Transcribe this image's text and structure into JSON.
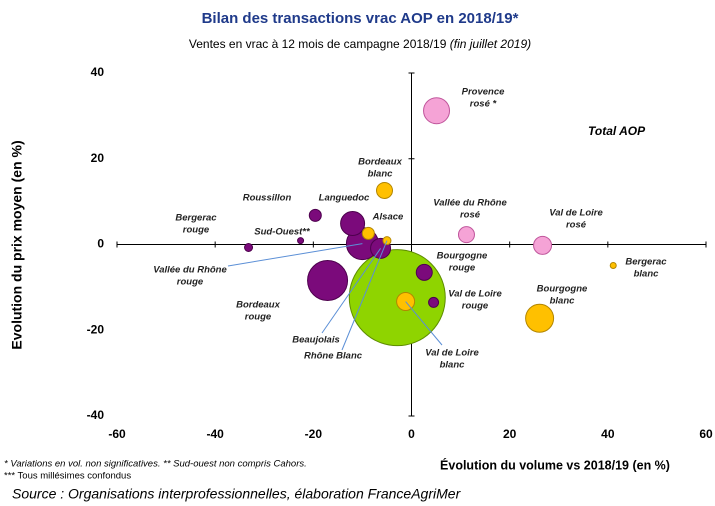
{
  "chart_data": {
    "type": "bubble",
    "title": "Bilan des transactions vrac AOP en 2018/19*",
    "subtitle": [
      "Ventes en vrac à 12 mois de campagne 2018/19 ",
      "(fin juillet 2019)"
    ],
    "annotation": "Total AOP",
    "x_label": "Évolution du volume vs 2018/19 (en %)",
    "y_label": "Evolution du prix moyen (en %)",
    "footnotes": [
      "* Variations en vol. non significatives. ** Sud-ouest non compris Cahors.",
      "*** Tous millésimes  confondus"
    ],
    "source": "Source : Organisations interprofessionnelles, élaboration FranceAgriMer",
    "xlim": [
      -60,
      60
    ],
    "xticks": [
      -60,
      -40,
      -20,
      0,
      20,
      40,
      60
    ],
    "ylim": [
      -40,
      40
    ],
    "yticks": [
      -40,
      -20,
      0,
      20,
      40
    ],
    "points": [
      {
        "label": null,
        "x": -2.9,
        "y": -12.4,
        "size": 48,
        "color": "#8fd400"
      },
      {
        "label": [
          "Bordeaux",
          "rouge"
        ],
        "x": -17.1,
        "y": -8.4,
        "size": 20,
        "color": "#7b0a7b"
      },
      {
        "label": [
          "Vallée du Rhône",
          "rouge"
        ],
        "x": -10,
        "y": 0.2,
        "size": 16,
        "color": "#7b0a7b"
      },
      {
        "label": [
          "Bourgogne",
          "blanc"
        ],
        "x": 26.1,
        "y": -17.2,
        "size": 14,
        "color": "#ffc000"
      },
      {
        "label": [
          "Provence",
          "rosé *"
        ],
        "x": 5.1,
        "y": 31.2,
        "size": 13,
        "color": "#f5a3d6"
      },
      {
        "label": [
          "Languedoc"
        ],
        "x": -12,
        "y": 4.9,
        "size": 12,
        "color": "#7b0a7b"
      },
      {
        "label": [
          "Beaujolais"
        ],
        "x": -6.3,
        "y": -0.9,
        "size": 10,
        "color": "#7b0a7b"
      },
      {
        "label": [
          "Val de Loire",
          "blanc"
        ],
        "x": -1.2,
        "y": -13.3,
        "size": 9,
        "color": "#ffc000"
      },
      {
        "label": [
          "Val de Loire",
          "rosé"
        ],
        "x": 26.7,
        "y": -0.2,
        "size": 9,
        "color": "#f5a3d6"
      },
      {
        "label": [
          "Bordeaux",
          "blanc"
        ],
        "x": -5.5,
        "y": 12.6,
        "size": 8,
        "color": "#ffc000"
      },
      {
        "label": [
          "Bourgogne",
          "rouge"
        ],
        "x": 2.6,
        "y": -6.5,
        "size": 8,
        "color": "#7b0a7b"
      },
      {
        "label": [
          "Vallée du Rhône",
          "rosé"
        ],
        "x": 11.2,
        "y": 2.3,
        "size": 8,
        "color": "#f5a3d6"
      },
      {
        "label": [
          "Roussillon"
        ],
        "x": -19.6,
        "y": 6.8,
        "size": 6,
        "color": "#7b0a7b"
      },
      {
        "label": [
          "Alsace"
        ],
        "x": -8.8,
        "y": 2.6,
        "size": 6,
        "color": "#ffc000"
      },
      {
        "label": [
          "Val de Loire",
          "rouge"
        ],
        "x": 4.5,
        "y": -13.5,
        "size": 5,
        "color": "#7b0a7b"
      },
      {
        "label": [
          "Rhône Blanc"
        ],
        "x": -5,
        "y": 0.9,
        "size": 4,
        "color": "#ffc000"
      },
      {
        "label": [
          "Bergerac",
          "rouge"
        ],
        "x": -33.2,
        "y": -0.7,
        "size": 4,
        "color": "#7b0a7b"
      },
      {
        "label": [
          "Sud-Ouest**"
        ],
        "x": -22.6,
        "y": 0.9,
        "size": 3,
        "color": "#7b0a7b"
      },
      {
        "label": [
          "Bergerac",
          "blanc"
        ],
        "x": 41.1,
        "y": -4.9,
        "size": 3,
        "color": "#ffc000"
      }
    ]
  }
}
